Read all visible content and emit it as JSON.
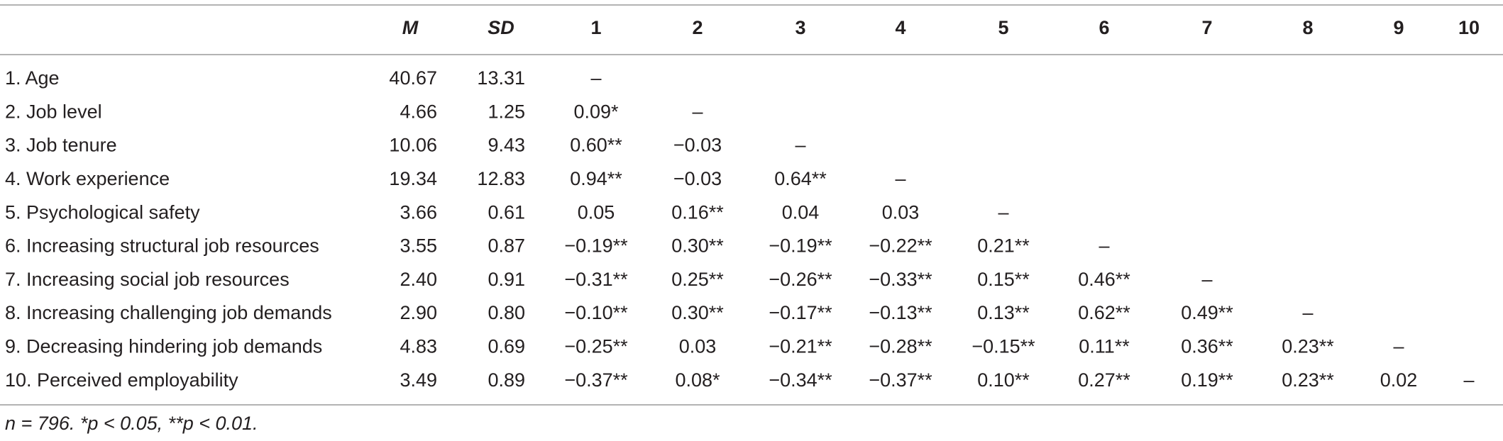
{
  "table": {
    "columns": [
      "M",
      "SD",
      "1",
      "2",
      "3",
      "4",
      "5",
      "6",
      "7",
      "8",
      "9",
      "10"
    ],
    "rows": [
      {
        "label": "1. Age",
        "cells": [
          "40.67",
          "13.31",
          "–"
        ]
      },
      {
        "label": "2. Job level",
        "cells": [
          "4.66",
          "1.25",
          "0.09*",
          "–"
        ]
      },
      {
        "label": "3. Job tenure",
        "cells": [
          "10.06",
          "9.43",
          "0.60**",
          "−0.03",
          "–"
        ]
      },
      {
        "label": "4. Work experience",
        "cells": [
          "19.34",
          "12.83",
          "0.94**",
          "−0.03",
          "0.64**",
          "–"
        ]
      },
      {
        "label": "5. Psychological safety",
        "cells": [
          "3.66",
          "0.61",
          "0.05",
          "0.16**",
          "0.04",
          "0.03",
          "–"
        ]
      },
      {
        "label": "6. Increasing structural job resources",
        "cells": [
          "3.55",
          "0.87",
          "−0.19**",
          "0.30**",
          "−0.19**",
          "−0.22**",
          "0.21**",
          "–"
        ]
      },
      {
        "label": "7. Increasing social job resources",
        "cells": [
          "2.40",
          "0.91",
          "−0.31**",
          "0.25**",
          "−0.26**",
          "−0.33**",
          "0.15**",
          "0.46**",
          "–"
        ]
      },
      {
        "label": "8. Increasing challenging job demands",
        "cells": [
          "2.90",
          "0.80",
          "−0.10**",
          "0.30**",
          "−0.17**",
          "−0.13**",
          "0.13**",
          "0.62**",
          "0.49**",
          "–"
        ]
      },
      {
        "label": "9. Decreasing hindering job demands",
        "cells": [
          "4.83",
          "0.69",
          "−0.25**",
          "0.03",
          "−0.21**",
          "−0.28**",
          "−0.15**",
          "0.11**",
          "0.36**",
          "0.23**",
          "–"
        ]
      },
      {
        "label": "10. Perceived employability",
        "cells": [
          "3.49",
          "0.89",
          "−0.37**",
          "0.08*",
          "−0.34**",
          "−0.37**",
          "0.10**",
          "0.27**",
          "0.19**",
          "0.23**",
          "0.02",
          "–"
        ]
      }
    ],
    "note": "n = 796. *p < 0.05, **p < 0.01."
  }
}
